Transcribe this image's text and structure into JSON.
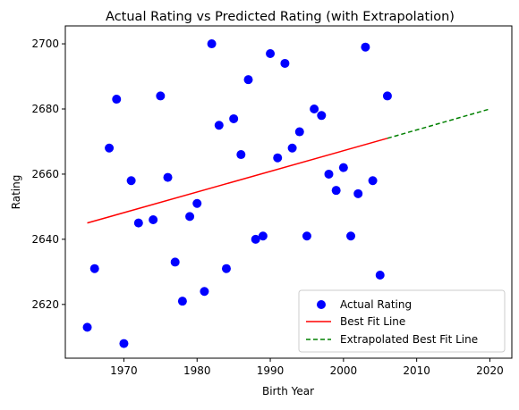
{
  "chart_data": {
    "type": "scatter",
    "title": "Actual Rating vs Predicted Rating (with Extrapolation)",
    "xlabel": "Birth Year",
    "ylabel": "Rating",
    "xlim": [
      1962,
      2023
    ],
    "ylim": [
      2603.5,
      2705.5
    ],
    "x_ticks": [
      1970,
      1980,
      1990,
      2000,
      2010,
      2020
    ],
    "y_ticks": [
      2620,
      2640,
      2660,
      2680,
      2700
    ],
    "grid": false,
    "legend_position": "bottom-right",
    "colors": {
      "points": "#0000ff",
      "fit": "#ff0000",
      "extrapolation": "#008000"
    },
    "series": [
      {
        "name": "Actual Rating",
        "kind": "scatter",
        "points": [
          [
            1965,
            2613
          ],
          [
            1966,
            2631
          ],
          [
            1968,
            2668
          ],
          [
            1969,
            2683
          ],
          [
            1970,
            2608
          ],
          [
            1971,
            2658
          ],
          [
            1972,
            2645
          ],
          [
            1974,
            2646
          ],
          [
            1975,
            2684
          ],
          [
            1976,
            2659
          ],
          [
            1977,
            2633
          ],
          [
            1978,
            2621
          ],
          [
            1979,
            2647
          ],
          [
            1980,
            2651
          ],
          [
            1981,
            2624
          ],
          [
            1982,
            2700
          ],
          [
            1983,
            2675
          ],
          [
            1984,
            2631
          ],
          [
            1985,
            2677
          ],
          [
            1986,
            2666
          ],
          [
            1987,
            2689
          ],
          [
            1988,
            2640
          ],
          [
            1989,
            2641
          ],
          [
            1990,
            2697
          ],
          [
            1991,
            2665
          ],
          [
            1992,
            2694
          ],
          [
            1993,
            2668
          ],
          [
            1994,
            2673
          ],
          [
            1995,
            2641
          ],
          [
            1996,
            2680
          ],
          [
            1997,
            2678
          ],
          [
            1998,
            2660
          ],
          [
            1999,
            2655
          ],
          [
            2000,
            2662
          ],
          [
            2001,
            2641
          ],
          [
            2002,
            2654
          ],
          [
            2003,
            2699
          ],
          [
            2004,
            2658
          ],
          [
            2005,
            2629
          ],
          [
            2006,
            2684
          ]
        ]
      },
      {
        "name": "Best Fit Line",
        "kind": "line",
        "style": "solid",
        "points": [
          [
            1965,
            2645
          ],
          [
            2006,
            2671
          ]
        ]
      },
      {
        "name": "Extrapolated Best Fit Line",
        "kind": "line",
        "style": "dashed",
        "points": [
          [
            2006,
            2671
          ],
          [
            2020,
            2680
          ]
        ]
      }
    ]
  }
}
